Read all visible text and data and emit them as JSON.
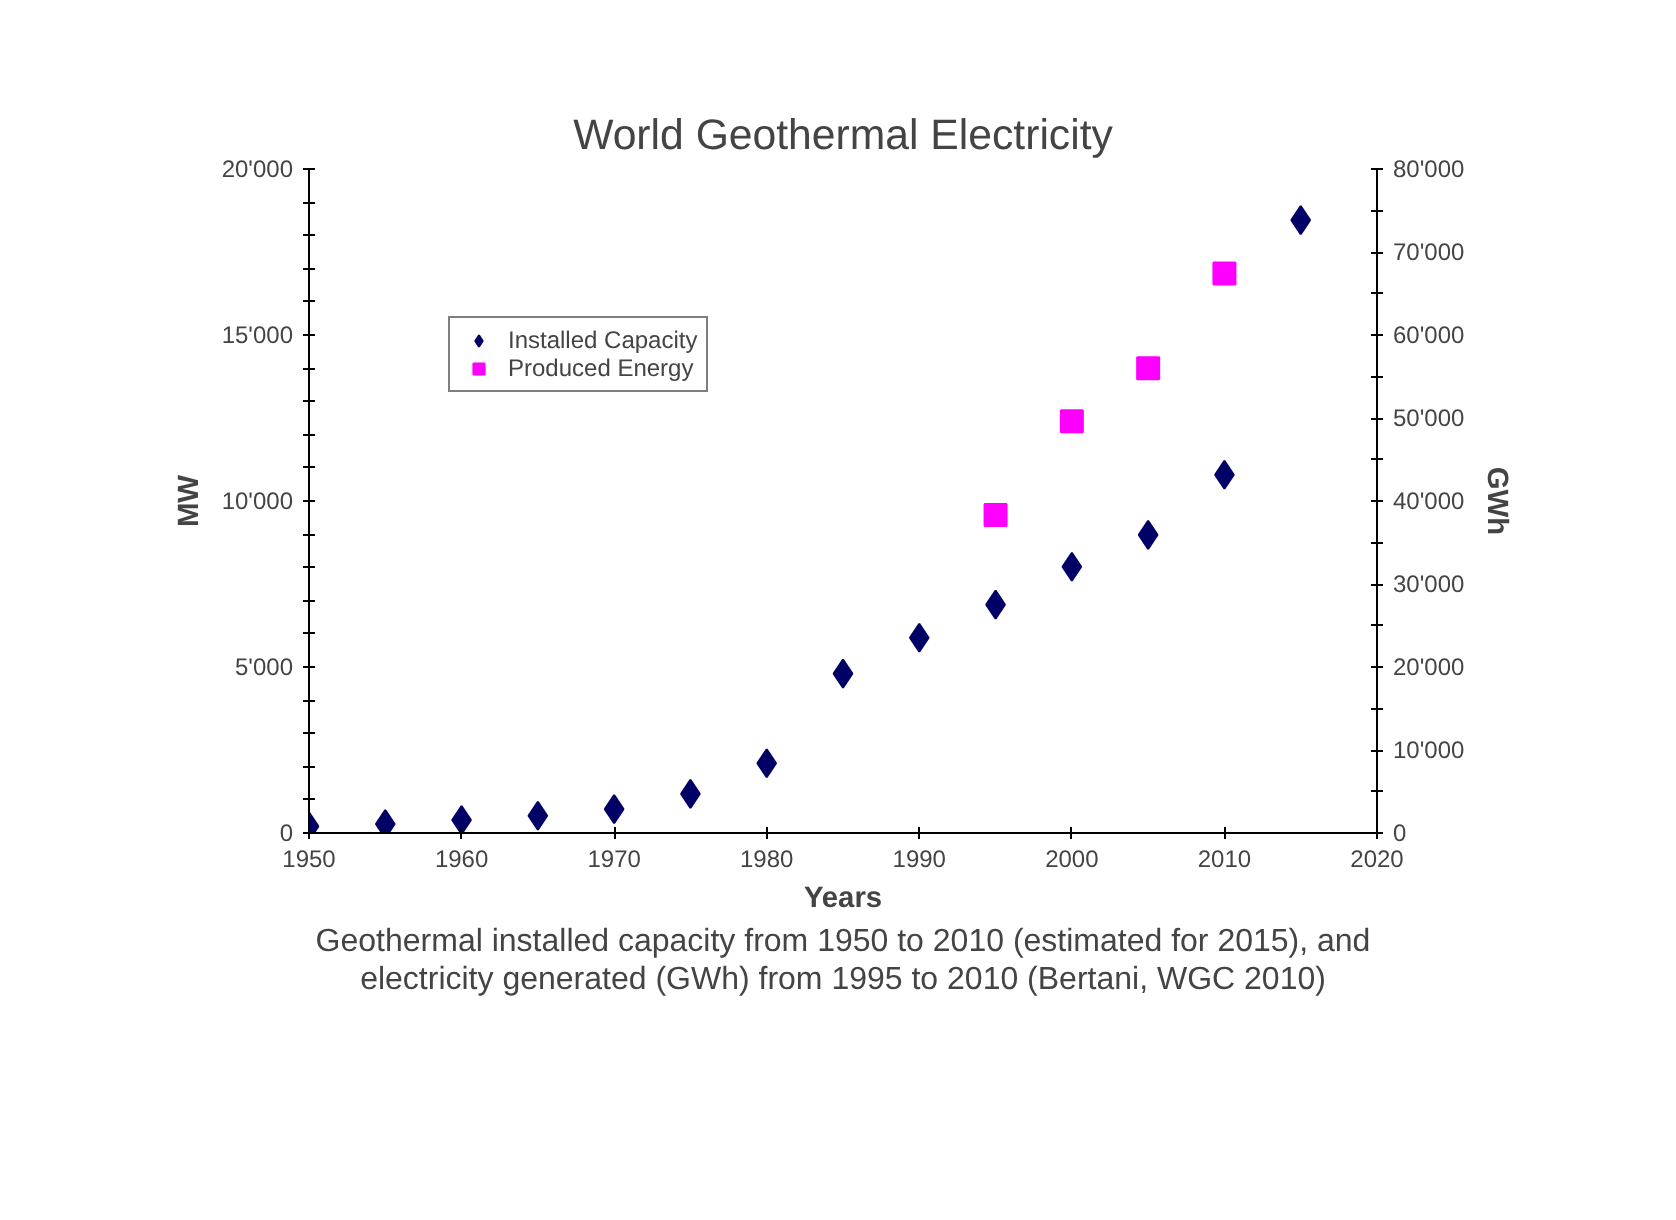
{
  "chart_data": {
    "type": "scatter",
    "title": "World Geothermal Electricity",
    "xlabel": "Years",
    "ylabel": "MW",
    "y2label": "GWh",
    "xlim": [
      1950,
      2020
    ],
    "xticks": [
      1950,
      1960,
      1970,
      1980,
      1990,
      2000,
      2010,
      2020
    ],
    "ylim": [
      0,
      20000
    ],
    "yticks": [
      {
        "value": 0,
        "label": "0"
      },
      {
        "value": 1000,
        "label": null
      },
      {
        "value": 2000,
        "label": null
      },
      {
        "value": 3000,
        "label": null
      },
      {
        "value": 4000,
        "label": null
      },
      {
        "value": 5000,
        "label": "5'000"
      },
      {
        "value": 6000,
        "label": null
      },
      {
        "value": 7000,
        "label": null
      },
      {
        "value": 8000,
        "label": null
      },
      {
        "value": 9000,
        "label": null
      },
      {
        "value": 10000,
        "label": "10'000"
      },
      {
        "value": 11000,
        "label": null
      },
      {
        "value": 12000,
        "label": null
      },
      {
        "value": 13000,
        "label": null
      },
      {
        "value": 14000,
        "label": null
      },
      {
        "value": 15000,
        "label": "15'000"
      },
      {
        "value": 16000,
        "label": null
      },
      {
        "value": 17000,
        "label": null
      },
      {
        "value": 18000,
        "label": null
      },
      {
        "value": 19000,
        "label": null
      },
      {
        "value": 20000,
        "label": "20'000"
      }
    ],
    "y2lim": [
      0,
      80000
    ],
    "y2ticks": [
      {
        "value": 0,
        "label": "0"
      },
      {
        "value": 5000,
        "label": null
      },
      {
        "value": 10000,
        "label": "10'000"
      },
      {
        "value": 15000,
        "label": null
      },
      {
        "value": 20000,
        "label": "20'000"
      },
      {
        "value": 25000,
        "label": null
      },
      {
        "value": 30000,
        "label": "30'000"
      },
      {
        "value": 35000,
        "label": null
      },
      {
        "value": 40000,
        "label": "40'000"
      },
      {
        "value": 45000,
        "label": null
      },
      {
        "value": 50000,
        "label": "50'000"
      },
      {
        "value": 55000,
        "label": null
      },
      {
        "value": 60000,
        "label": "60'000"
      },
      {
        "value": 65000,
        "label": null
      },
      {
        "value": 70000,
        "label": "70'000"
      },
      {
        "value": 75000,
        "label": null
      },
      {
        "value": 80000,
        "label": "80'000"
      }
    ],
    "grid": false,
    "legend": "top left",
    "series": [
      {
        "name": "Installed Capacity",
        "color": "#000066",
        "marker": "diamond",
        "x": [
          1950,
          1955,
          1960,
          1965,
          1970,
          1975,
          1980,
          1985,
          1990,
          1995,
          2000,
          2005,
          2010,
          2015
        ],
        "values": [
          200,
          270,
          390,
          520,
          720,
          1180,
          2100,
          4800,
          5880,
          6880,
          8020,
          8980,
          10790,
          18460
        ]
      },
      {
        "name": "Produced Energy",
        "color": "#ff00ff",
        "marker": "square",
        "axis": "y2",
        "x": [
          1995,
          2000,
          2005,
          2010
        ],
        "values": [
          38300,
          49600,
          56000,
          67400
        ]
      }
    ],
    "annotations": [
      "Geothermal installed capacity from 1950 to 2010 (estimated for 2015), and electricity generated (GWh) from 1995 to 2010 (Bertani, WGC 2010)"
    ]
  }
}
